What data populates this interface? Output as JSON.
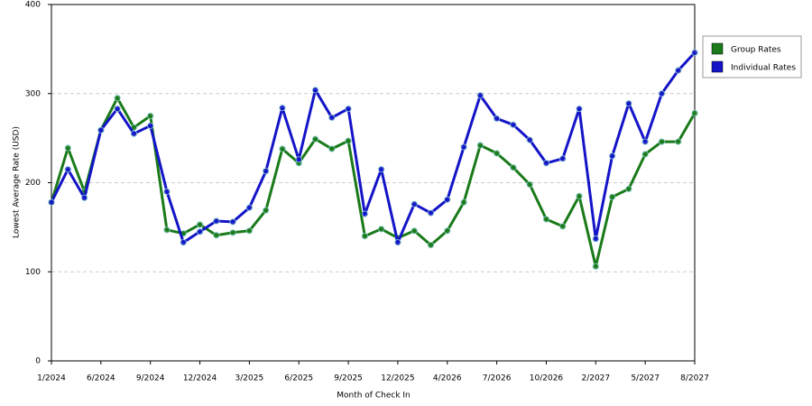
{
  "chart_data": {
    "type": "line",
    "x_label": "Month of Check In",
    "y_label": "Lowest Average Rate (USD)",
    "categories": [
      "1/2024",
      null,
      null,
      "6/2024",
      null,
      null,
      "9/2024",
      null,
      null,
      "12/2024",
      null,
      null,
      "3/2025",
      null,
      null,
      "6/2025",
      null,
      null,
      "9/2025",
      null,
      null,
      "12/2025",
      null,
      null,
      "4/2026",
      null,
      null,
      "7/2026",
      null,
      null,
      "10/2026",
      null,
      null,
      "2/2027",
      null,
      null,
      "5/2027",
      null,
      null,
      "8/2027"
    ],
    "series": [
      {
        "name": "Group Rates",
        "color": "#1a7a1a",
        "values": [
          178,
          239,
          190,
          259,
          295,
          262,
          275,
          147,
          143,
          153,
          141,
          144,
          146,
          169,
          238,
          222,
          249,
          238,
          247,
          140,
          148,
          138,
          146,
          130,
          146,
          178,
          242,
          233,
          217,
          198,
          159,
          151,
          185,
          106,
          184,
          193,
          232,
          246,
          246,
          278
        ]
      },
      {
        "name": "Individual Rates",
        "color": "#1414c8",
        "values": [
          178,
          215,
          183,
          259,
          283,
          255,
          264,
          190,
          133,
          145,
          157,
          156,
          172,
          213,
          284,
          226,
          304,
          273,
          283,
          165,
          215,
          133,
          176,
          166,
          181,
          240,
          298,
          272,
          265,
          248,
          222,
          227,
          283,
          137,
          230,
          289,
          246,
          300,
          326,
          346
        ]
      }
    ],
    "ylim": [
      0,
      400
    ],
    "yticks": [
      0,
      100,
      200,
      300,
      400
    ],
    "grid": true,
    "legend": "right"
  }
}
